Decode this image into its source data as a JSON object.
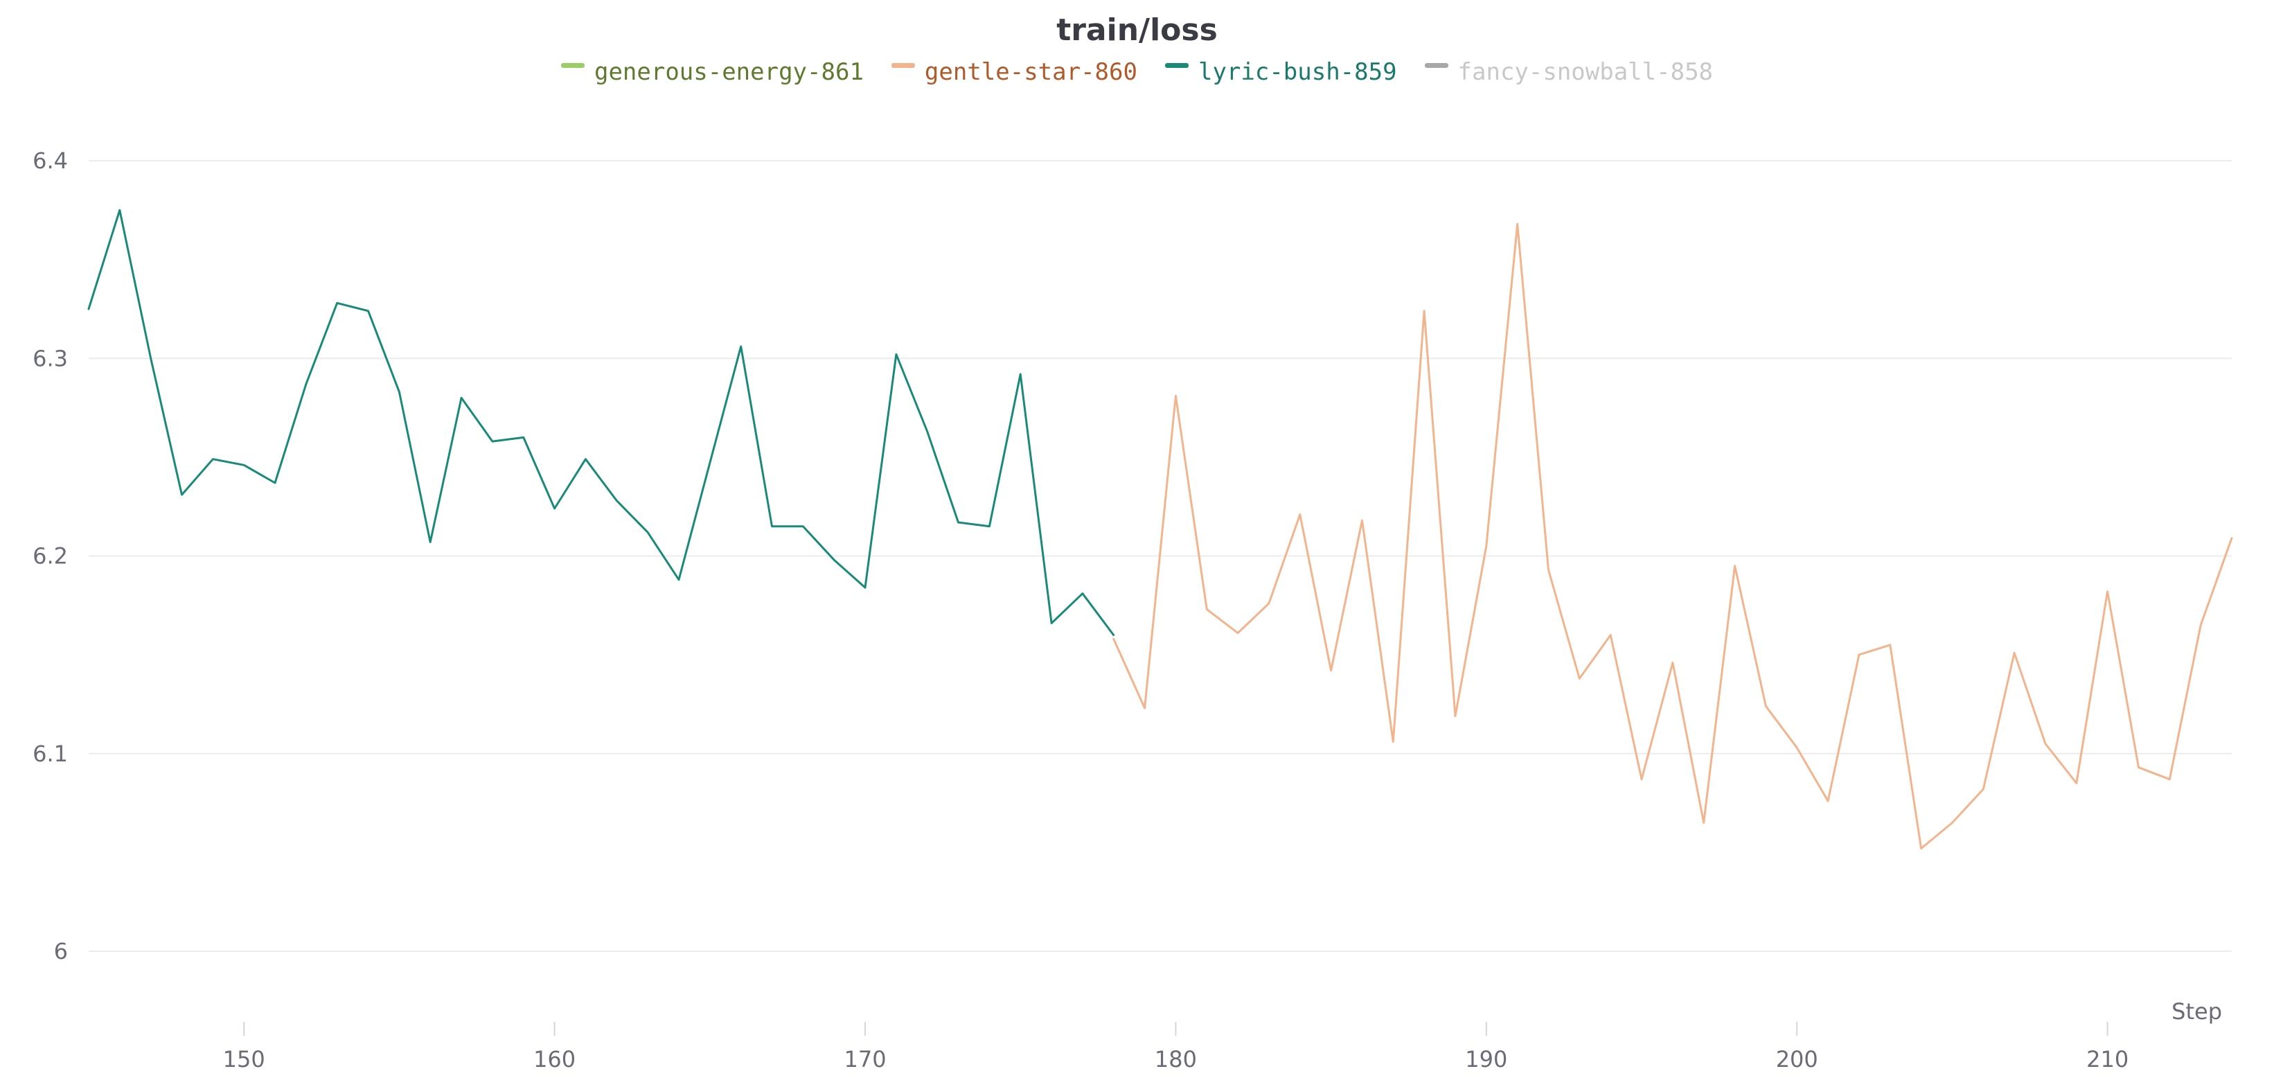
{
  "chart_data": {
    "type": "line",
    "title": "train/loss",
    "xlabel": "Step",
    "ylabel": "",
    "xlim": [
      145,
      214
    ],
    "ylim": [
      6.0,
      6.4
    ],
    "x_ticks": [
      150,
      160,
      170,
      180,
      190,
      200,
      210
    ],
    "y_ticks": [
      {
        "value": 6.0,
        "label": "6"
      },
      {
        "value": 6.1,
        "label": "6.1"
      },
      {
        "value": 6.2,
        "label": "6.2"
      },
      {
        "value": 6.3,
        "label": "6.3"
      },
      {
        "value": 6.4,
        "label": "6.4"
      }
    ],
    "grid": true,
    "legend_position": "top-center",
    "legend": [
      {
        "name": "generous-energy-861",
        "swatch_color": "#9ccc65",
        "text_color": "#5f7a2f"
      },
      {
        "name": "gentle-star-860",
        "swatch_color": "#f2b48c",
        "text_color": "#b05a2a"
      },
      {
        "name": "lyric-bush-859",
        "swatch_color": "#1a8a78",
        "text_color": "#1a7a6a"
      },
      {
        "name": "fancy-snowball-858",
        "swatch_color": "#a8a8a8",
        "text_color": "#c8c8c8"
      }
    ],
    "series": [
      {
        "name": "lyric-bush-859",
        "color": "#1a8a78",
        "x": [
          145,
          146,
          147,
          148,
          149,
          150,
          151,
          152,
          153,
          154,
          155,
          156,
          157,
          158,
          159,
          160,
          161,
          162,
          163,
          164,
          165,
          166,
          167,
          168,
          169,
          170,
          171,
          172,
          173,
          174,
          175,
          176,
          177,
          178
        ],
        "y": [
          6.325,
          6.375,
          6.3,
          6.231,
          6.249,
          6.246,
          6.237,
          6.287,
          6.328,
          6.324,
          6.283,
          6.207,
          6.28,
          6.258,
          6.26,
          6.224,
          6.249,
          6.228,
          6.212,
          6.188,
          6.247,
          6.306,
          6.215,
          6.215,
          6.198,
          6.184,
          6.302,
          6.263,
          6.217,
          6.215,
          6.292,
          6.166,
          6.181,
          6.16
        ]
      },
      {
        "name": "gentle-star-860",
        "color": "#f2b48c",
        "x": [
          178,
          179,
          180,
          181,
          182,
          183,
          184,
          185,
          186,
          187,
          188,
          189,
          190,
          191,
          192,
          193,
          194,
          195,
          196,
          197,
          198,
          199,
          200,
          201,
          202,
          203,
          204,
          205,
          206,
          207,
          208,
          209,
          210,
          211,
          212,
          213,
          214
        ],
        "y": [
          6.158,
          6.123,
          6.281,
          6.173,
          6.161,
          6.176,
          6.221,
          6.142,
          6.218,
          6.106,
          6.324,
          6.119,
          6.205,
          6.368,
          6.193,
          6.138,
          6.16,
          6.087,
          6.146,
          6.065,
          6.195,
          6.124,
          6.103,
          6.076,
          6.15,
          6.155,
          6.052,
          6.065,
          6.082,
          6.151,
          6.105,
          6.085,
          6.182,
          6.093,
          6.087,
          6.165,
          6.209
        ]
      }
    ]
  }
}
